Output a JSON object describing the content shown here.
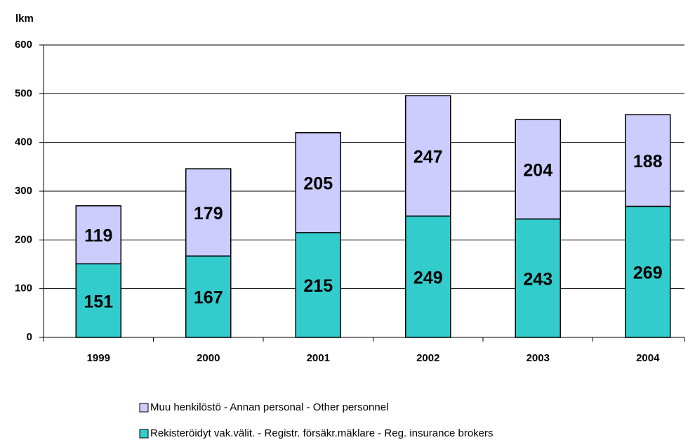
{
  "chart_data": {
    "type": "bar",
    "stacked": true,
    "y_axis_label": "lkm",
    "categories": [
      "1999",
      "2000",
      "2001",
      "2002",
      "2003",
      "2004"
    ],
    "series": [
      {
        "name": "Rekisteröidyt vak.välit. - Registr. försäkr.mäklare - Reg. insurance brokers",
        "color": "#33cccc",
        "values": [
          151,
          167,
          215,
          249,
          243,
          269
        ]
      },
      {
        "name": "Muu henkilöstö - Annan personal - Other personnel",
        "color": "#ccccff",
        "values": [
          119,
          179,
          205,
          247,
          204,
          188
        ]
      }
    ],
    "ylim": [
      0,
      600
    ],
    "yticks": [
      0,
      100,
      200,
      300,
      400,
      500,
      600
    ],
    "grid": true
  }
}
